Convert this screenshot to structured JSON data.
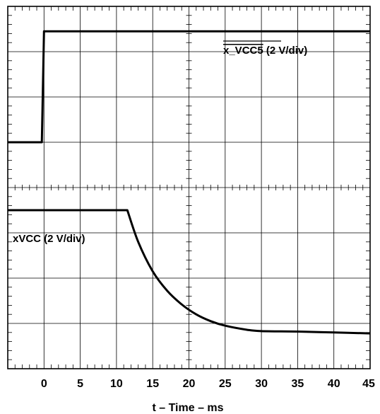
{
  "chart_data": {
    "type": "line",
    "xlabel": "t – Time – ms",
    "xlim": [
      -5,
      45
    ],
    "x_ticks": [
      "0",
      "5",
      "10",
      "15",
      "20",
      "25",
      "30",
      "35",
      "40",
      "45"
    ],
    "x_tick_values": [
      0,
      5,
      10,
      15,
      20,
      25,
      30,
      35,
      40,
      45
    ],
    "grid": true,
    "divisions": {
      "x": 10,
      "y": 8
    },
    "series": [
      {
        "name": "x_VCC5 (2 V/div)",
        "name_overline": "x_VCC5",
        "name_suffix": " (2 V/div)",
        "y_divisions": [
          [
            -5,
            5.0
          ],
          [
            -0.3,
            5.0
          ],
          [
            0,
            7.45
          ],
          [
            45,
            7.45
          ]
        ]
      },
      {
        "name": "xVCC (2 V/div)",
        "y_divisions": [
          [
            -5,
            3.5
          ],
          [
            11.5,
            3.5
          ],
          [
            13,
            2.8
          ],
          [
            15,
            2.15
          ],
          [
            17,
            1.72
          ],
          [
            19,
            1.42
          ],
          [
            21,
            1.2
          ],
          [
            23,
            1.05
          ],
          [
            25,
            0.95
          ],
          [
            28,
            0.86
          ],
          [
            30,
            0.83
          ],
          [
            35,
            0.82
          ],
          [
            40,
            0.8
          ],
          [
            45,
            0.78
          ]
        ]
      }
    ]
  }
}
